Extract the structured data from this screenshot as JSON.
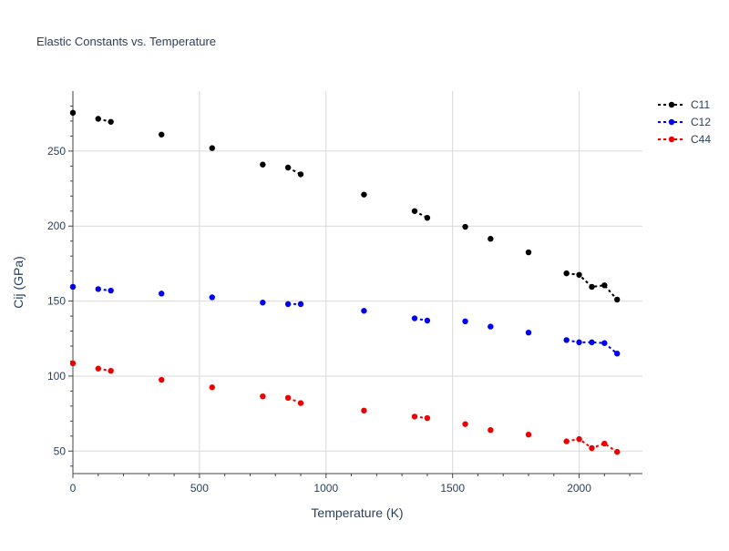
{
  "chart_data": {
    "type": "line",
    "title": "Elastic Constants vs. Temperature",
    "xlabel": "Temperature (K)",
    "ylabel": "Cij (GPa)",
    "xlim": [
      0,
      2250
    ],
    "ylim": [
      35,
      290
    ],
    "x_ticks": [
      0,
      500,
      1000,
      1500,
      2000
    ],
    "y_ticks": [
      50,
      100,
      150,
      200,
      250
    ],
    "x_tick_labels": [
      "0",
      "500",
      "1000",
      "1500",
      "2000"
    ],
    "y_tick_labels": [
      "50",
      "100",
      "150",
      "200",
      "250"
    ],
    "grid": true,
    "legend_position": "top-right",
    "series": [
      {
        "name": "C11",
        "color": "#000000",
        "segments": [
          [
            [
              0,
              275.5
            ]
          ],
          [
            [
              100,
              271.5
            ],
            [
              150,
              269.5
            ]
          ],
          [
            [
              350,
              261
            ]
          ],
          [
            [
              550,
              252
            ]
          ],
          [
            [
              750,
              241
            ]
          ],
          [
            [
              850,
              239
            ],
            [
              900,
              234.5
            ]
          ],
          [
            [
              1150,
              221
            ]
          ],
          [
            [
              1350,
              210
            ],
            [
              1400,
              205.5
            ]
          ],
          [
            [
              1550,
              199.5
            ]
          ],
          [
            [
              1650,
              191.5
            ]
          ],
          [
            [
              1800,
              182.5
            ]
          ],
          [
            [
              1950,
              168.5
            ],
            [
              2000,
              167.5
            ],
            [
              2050,
              159.5
            ],
            [
              2100,
              160.5
            ],
            [
              2150,
              151
            ]
          ]
        ]
      },
      {
        "name": "C12",
        "color": "#0000ee",
        "segments": [
          [
            [
              0,
              159.5
            ]
          ],
          [
            [
              100,
              158
            ],
            [
              150,
              157
            ]
          ],
          [
            [
              350,
              155
            ]
          ],
          [
            [
              550,
              152.5
            ]
          ],
          [
            [
              750,
              149
            ]
          ],
          [
            [
              850,
              148
            ],
            [
              900,
              148
            ]
          ],
          [
            [
              1150,
              143.5
            ]
          ],
          [
            [
              1350,
              138.5
            ],
            [
              1400,
              137
            ]
          ],
          [
            [
              1550,
              136.5
            ]
          ],
          [
            [
              1650,
              133
            ]
          ],
          [
            [
              1800,
              129
            ]
          ],
          [
            [
              1950,
              124
            ],
            [
              2000,
              122.5
            ],
            [
              2050,
              122.5
            ],
            [
              2100,
              122
            ],
            [
              2150,
              115
            ]
          ]
        ]
      },
      {
        "name": "C44",
        "color": "#ee0000",
        "segments": [
          [
            [
              0,
              108.5
            ]
          ],
          [
            [
              100,
              105
            ],
            [
              150,
              103.5
            ]
          ],
          [
            [
              350,
              97.5
            ]
          ],
          [
            [
              550,
              92.5
            ]
          ],
          [
            [
              750,
              86.5
            ]
          ],
          [
            [
              850,
              85.5
            ],
            [
              900,
              82
            ]
          ],
          [
            [
              1150,
              77
            ]
          ],
          [
            [
              1350,
              73
            ],
            [
              1400,
              72
            ]
          ],
          [
            [
              1550,
              68
            ]
          ],
          [
            [
              1650,
              64
            ]
          ],
          [
            [
              1800,
              61
            ]
          ],
          [
            [
              1950,
              56.5
            ],
            [
              2000,
              58
            ],
            [
              2050,
              52
            ],
            [
              2100,
              55
            ],
            [
              2150,
              49.5
            ]
          ]
        ]
      }
    ]
  }
}
